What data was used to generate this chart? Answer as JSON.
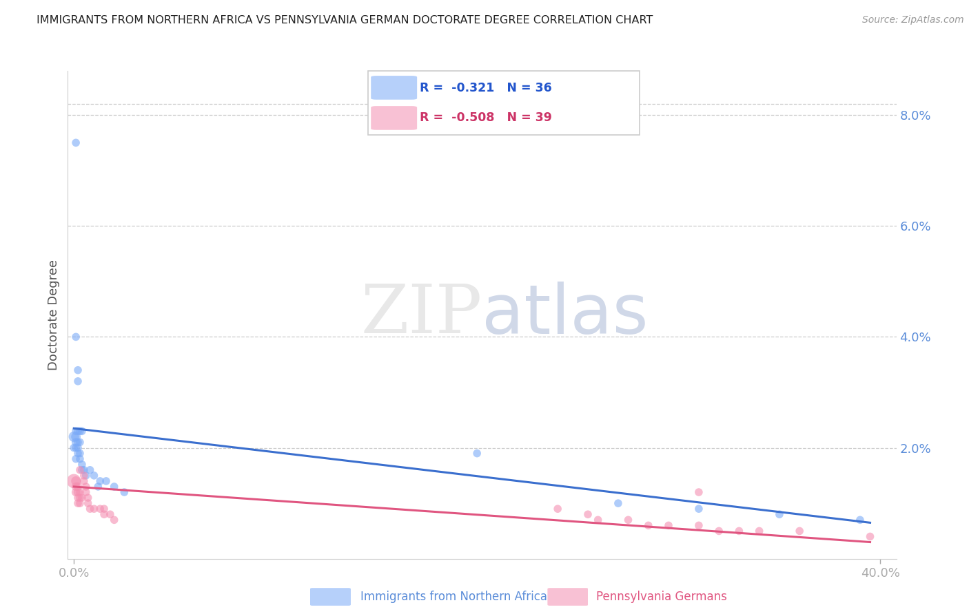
{
  "title": "IMMIGRANTS FROM NORTHERN AFRICA VS PENNSYLVANIA GERMAN DOCTORATE DEGREE CORRELATION CHART",
  "source": "Source: ZipAtlas.com",
  "ylabel": "Doctorate Degree",
  "right_yticks": [
    "8.0%",
    "6.0%",
    "4.0%",
    "2.0%"
  ],
  "right_ytick_vals": [
    0.08,
    0.06,
    0.04,
    0.02
  ],
  "ylim": [
    0.0,
    0.088
  ],
  "xlim": [
    -0.003,
    0.408
  ],
  "legend_blue_r": "-0.321",
  "legend_blue_n": "36",
  "legend_pink_r": "-0.508",
  "legend_pink_n": "39",
  "legend_label_blue": "Immigrants from Northern Africa",
  "legend_label_pink": "Pennsylvania Germans",
  "watermark_zip": "ZIP",
  "watermark_atlas": "atlas",
  "blue_color": "#7baaf7",
  "pink_color": "#f48fb1",
  "blue_line_color": "#3b6fce",
  "pink_line_color": "#e05580",
  "blue_scatter": [
    [
      0.001,
      0.075
    ],
    [
      0.001,
      0.04
    ],
    [
      0.002,
      0.034
    ],
    [
      0.002,
      0.032
    ],
    [
      0.001,
      0.023
    ],
    [
      0.002,
      0.023
    ],
    [
      0.003,
      0.023
    ],
    [
      0.004,
      0.023
    ],
    [
      0.0,
      0.022
    ],
    [
      0.001,
      0.022
    ],
    [
      0.001,
      0.021
    ],
    [
      0.002,
      0.021
    ],
    [
      0.003,
      0.021
    ],
    [
      0.0,
      0.02
    ],
    [
      0.001,
      0.02
    ],
    [
      0.002,
      0.02
    ],
    [
      0.003,
      0.019
    ],
    [
      0.002,
      0.019
    ],
    [
      0.001,
      0.018
    ],
    [
      0.003,
      0.018
    ],
    [
      0.004,
      0.017
    ],
    [
      0.005,
      0.016
    ],
    [
      0.004,
      0.016
    ],
    [
      0.006,
      0.015
    ],
    [
      0.008,
      0.016
    ],
    [
      0.01,
      0.015
    ],
    [
      0.013,
      0.014
    ],
    [
      0.016,
      0.014
    ],
    [
      0.012,
      0.013
    ],
    [
      0.02,
      0.013
    ],
    [
      0.025,
      0.012
    ],
    [
      0.2,
      0.019
    ],
    [
      0.27,
      0.01
    ],
    [
      0.31,
      0.009
    ],
    [
      0.35,
      0.008
    ],
    [
      0.39,
      0.007
    ]
  ],
  "blue_sizes": [
    70,
    70,
    70,
    70,
    70,
    70,
    70,
    70,
    120,
    100,
    80,
    70,
    70,
    70,
    70,
    70,
    70,
    70,
    70,
    70,
    70,
    70,
    70,
    70,
    70,
    70,
    70,
    70,
    70,
    70,
    70,
    70,
    70,
    70,
    70,
    70
  ],
  "pink_scatter": [
    [
      0.0,
      0.014
    ],
    [
      0.001,
      0.014
    ],
    [
      0.001,
      0.013
    ],
    [
      0.002,
      0.013
    ],
    [
      0.001,
      0.012
    ],
    [
      0.002,
      0.012
    ],
    [
      0.003,
      0.012
    ],
    [
      0.002,
      0.011
    ],
    [
      0.003,
      0.011
    ],
    [
      0.004,
      0.011
    ],
    [
      0.002,
      0.01
    ],
    [
      0.003,
      0.01
    ],
    [
      0.003,
      0.016
    ],
    [
      0.005,
      0.015
    ],
    [
      0.005,
      0.014
    ],
    [
      0.006,
      0.013
    ],
    [
      0.006,
      0.012
    ],
    [
      0.007,
      0.011
    ],
    [
      0.007,
      0.01
    ],
    [
      0.008,
      0.009
    ],
    [
      0.01,
      0.009
    ],
    [
      0.013,
      0.009
    ],
    [
      0.015,
      0.009
    ],
    [
      0.015,
      0.008
    ],
    [
      0.018,
      0.008
    ],
    [
      0.02,
      0.007
    ],
    [
      0.24,
      0.009
    ],
    [
      0.255,
      0.008
    ],
    [
      0.26,
      0.007
    ],
    [
      0.275,
      0.007
    ],
    [
      0.285,
      0.006
    ],
    [
      0.295,
      0.006
    ],
    [
      0.31,
      0.006
    ],
    [
      0.32,
      0.005
    ],
    [
      0.33,
      0.005
    ],
    [
      0.34,
      0.005
    ],
    [
      0.36,
      0.005
    ],
    [
      0.31,
      0.012
    ],
    [
      0.395,
      0.004
    ]
  ],
  "pink_sizes": [
    220,
    100,
    80,
    80,
    80,
    80,
    70,
    70,
    70,
    70,
    70,
    70,
    70,
    70,
    70,
    70,
    70,
    70,
    70,
    70,
    70,
    70,
    70,
    70,
    70,
    70,
    70,
    70,
    70,
    70,
    70,
    70,
    70,
    70,
    70,
    70,
    70,
    70,
    70
  ],
  "blue_line_x": [
    0.0,
    0.395
  ],
  "blue_line_y": [
    0.0235,
    0.0065
  ],
  "pink_line_x": [
    0.0,
    0.395
  ],
  "pink_line_y": [
    0.013,
    0.003
  ]
}
